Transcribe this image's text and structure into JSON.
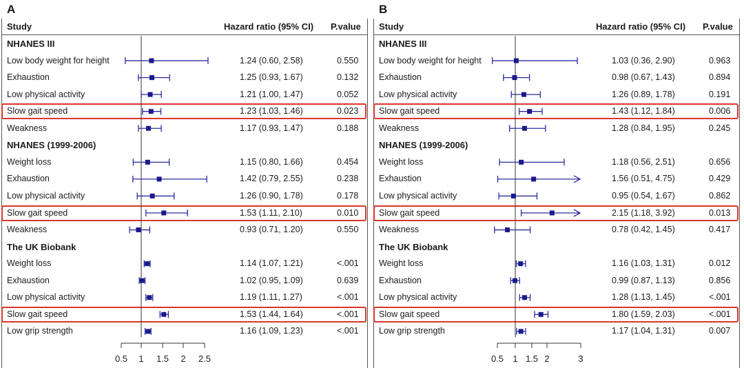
{
  "panels": [
    {
      "id": "A",
      "headers": {
        "study": "Study",
        "hr": "Hazard ratio (95% CI)",
        "p": "P.value"
      },
      "axis": {
        "ticks": [
          "0.5",
          "1",
          "1.5",
          "2",
          "2.5"
        ],
        "range": [
          0.5,
          2.5
        ],
        "reference": 1
      },
      "rows": [
        {
          "type": "group",
          "label": "NHANES III"
        },
        {
          "label": "Low body weight for height",
          "hr": "1.24 (0.60, 2.58)",
          "p": "0.550",
          "est": 1.24,
          "lo": 0.6,
          "hi": 2.58
        },
        {
          "label": "Exhaustion",
          "hr": "1.25 (0.93, 1.67)",
          "p": "0.132",
          "est": 1.25,
          "lo": 0.93,
          "hi": 1.67
        },
        {
          "label": "Low physical activity",
          "hr": "1.21 (1.00, 1.47)",
          "p": "0.052",
          "est": 1.21,
          "lo": 1.0,
          "hi": 1.47
        },
        {
          "label": "Slow gait speed",
          "hr": "1.23 (1.03, 1.46)",
          "p": "0.023",
          "est": 1.23,
          "lo": 1.03,
          "hi": 1.46,
          "highlight": true
        },
        {
          "label": "Weakness",
          "hr": "1.17 (0.93, 1.47)",
          "p": "0.188",
          "est": 1.17,
          "lo": 0.93,
          "hi": 1.47
        },
        {
          "type": "group",
          "label": "NHANES (1999-2006)"
        },
        {
          "label": "Weight loss",
          "hr": "1.15 (0.80, 1.66)",
          "p": "0.454",
          "est": 1.15,
          "lo": 0.8,
          "hi": 1.66
        },
        {
          "label": "Exhaustion",
          "hr": "1.42 (0.79, 2.55)",
          "p": "0.238",
          "est": 1.42,
          "lo": 0.79,
          "hi": 2.55
        },
        {
          "label": "Low physical activity",
          "hr": "1.26 (0.90, 1.78)",
          "p": "0.178",
          "est": 1.26,
          "lo": 0.9,
          "hi": 1.78
        },
        {
          "label": "Slow gait speed",
          "hr": "1.53 (1.11, 2.10)",
          "p": "0.010",
          "est": 1.53,
          "lo": 1.11,
          "hi": 2.1,
          "highlight": true
        },
        {
          "label": "Weakness",
          "hr": "0.93 (0.71, 1.20)",
          "p": "0.550",
          "est": 0.93,
          "lo": 0.71,
          "hi": 1.2
        },
        {
          "type": "group",
          "label": "The UK Biobank"
        },
        {
          "label": "Weight loss",
          "hr": "1.14 (1.07, 1.21)",
          "p": "<.001",
          "est": 1.14,
          "lo": 1.07,
          "hi": 1.21
        },
        {
          "label": "Exhaustion",
          "hr": "1.02 (0.95, 1.09)",
          "p": "0.639",
          "est": 1.02,
          "lo": 0.95,
          "hi": 1.09
        },
        {
          "label": "Low physical activity",
          "hr": "1.19 (1.11, 1.27)",
          "p": "<.001",
          "est": 1.19,
          "lo": 1.11,
          "hi": 1.27
        },
        {
          "label": "Slow gait speed",
          "hr": "1.53 (1.44, 1.64)",
          "p": "<.001",
          "est": 1.53,
          "lo": 1.44,
          "hi": 1.64,
          "highlight": true
        },
        {
          "label": "Low grip strength",
          "hr": "1.16 (1.09, 1.23)",
          "p": "<.001",
          "est": 1.16,
          "lo": 1.09,
          "hi": 1.23
        }
      ]
    },
    {
      "id": "B",
      "headers": {
        "study": "Study",
        "hr": "Hazard ratio (95% CI)",
        "p": "P.value"
      },
      "axis": {
        "ticks": [
          "0.5",
          "1",
          "1.5",
          "2",
          "3"
        ],
        "range": [
          0.5,
          3
        ],
        "reference": 1
      },
      "rows": [
        {
          "type": "group",
          "label": "NHANES III"
        },
        {
          "label": "Low body weight for height",
          "hr": "1.03 (0.36, 2.90)",
          "p": "0.963",
          "est": 1.03,
          "lo": 0.36,
          "hi": 2.9
        },
        {
          "label": "Exhaustion",
          "hr": "0.98 (0.67, 1.43)",
          "p": "0.894",
          "est": 0.98,
          "lo": 0.67,
          "hi": 1.43
        },
        {
          "label": "Low physical activity",
          "hr": "1.26 (0.89, 1.78)",
          "p": "0.191",
          "est": 1.26,
          "lo": 0.89,
          "hi": 1.78
        },
        {
          "label": "Slow gait speed",
          "hr": "1.43 (1.12, 1.84)",
          "p": "0.006",
          "est": 1.43,
          "lo": 1.12,
          "hi": 1.84,
          "highlight": true
        },
        {
          "label": "Weakness",
          "hr": "1.28 (0.84, 1.95)",
          "p": "0.245",
          "est": 1.28,
          "lo": 0.84,
          "hi": 1.95
        },
        {
          "type": "group",
          "label": "NHANES (1999-2006)"
        },
        {
          "label": "Weight loss",
          "hr": "1.18 (0.56, 2.51)",
          "p": "0.656",
          "est": 1.18,
          "lo": 0.56,
          "hi": 2.51
        },
        {
          "label": "Exhaustion",
          "hr": "1.56 (0.51, 4.75)",
          "p": "0.429",
          "est": 1.56,
          "lo": 0.51,
          "hi": 4.75,
          "arrow": true
        },
        {
          "label": "Low physical activity",
          "hr": "0.95 (0.54, 1.67)",
          "p": "0.862",
          "est": 0.95,
          "lo": 0.54,
          "hi": 1.67
        },
        {
          "label": "Slow gait speed",
          "hr": "2.15 (1.18, 3.92)",
          "p": "0.013",
          "est": 2.15,
          "lo": 1.18,
          "hi": 3.92,
          "highlight": true,
          "arrow": true
        },
        {
          "label": "Weakness",
          "hr": "0.78 (0.42, 1.45)",
          "p": "0.417",
          "est": 0.78,
          "lo": 0.42,
          "hi": 1.45
        },
        {
          "type": "group",
          "label": "The UK Biobank"
        },
        {
          "label": "Weight loss",
          "hr": "1.16 (1.03, 1.31)",
          "p": "0.012",
          "est": 1.16,
          "lo": 1.03,
          "hi": 1.31
        },
        {
          "label": "Exhaustion",
          "hr": "0.99 (0.87, 1.13)",
          "p": "0.856",
          "est": 0.99,
          "lo": 0.87,
          "hi": 1.13
        },
        {
          "label": "Low physical activity",
          "hr": "1.28 (1.13, 1.45)",
          "p": "<.001",
          "est": 1.28,
          "lo": 1.13,
          "hi": 1.45
        },
        {
          "label": "Slow gait speed",
          "hr": "1.80 (1.59, 2.03)",
          "p": "<.001",
          "est": 1.8,
          "lo": 1.59,
          "hi": 2.03,
          "highlight": true
        },
        {
          "label": "Low grip strength",
          "hr": "1.17 (1.04, 1.31)",
          "p": "0.007",
          "est": 1.17,
          "lo": 1.04,
          "hi": 1.31
        }
      ]
    }
  ],
  "colors": {
    "marker": "#1a1a8c",
    "ci": "#2a2aa0",
    "highlight": "#d9362b",
    "reference": "#333333"
  },
  "chart_data": [
    {
      "type": "forest",
      "title": "A",
      "xlabel": "",
      "xlim": [
        0.5,
        2.5
      ],
      "xticks": [
        0.5,
        1,
        1.5,
        2,
        2.5
      ],
      "reference_line": 1,
      "series": [
        {
          "name": "Hazard ratio (95% CI)",
          "points": [
            {
              "group": "NHANES III",
              "label": "Low body weight for height",
              "y": 1.24,
              "lo": 0.6,
              "hi": 2.58,
              "p": "0.550"
            },
            {
              "group": "NHANES III",
              "label": "Exhaustion",
              "y": 1.25,
              "lo": 0.93,
              "hi": 1.67,
              "p": "0.132"
            },
            {
              "group": "NHANES III",
              "label": "Low physical activity",
              "y": 1.21,
              "lo": 1.0,
              "hi": 1.47,
              "p": "0.052"
            },
            {
              "group": "NHANES III",
              "label": "Slow gait speed",
              "y": 1.23,
              "lo": 1.03,
              "hi": 1.46,
              "p": "0.023"
            },
            {
              "group": "NHANES III",
              "label": "Weakness",
              "y": 1.17,
              "lo": 0.93,
              "hi": 1.47,
              "p": "0.188"
            },
            {
              "group": "NHANES (1999-2006)",
              "label": "Weight loss",
              "y": 1.15,
              "lo": 0.8,
              "hi": 1.66,
              "p": "0.454"
            },
            {
              "group": "NHANES (1999-2006)",
              "label": "Exhaustion",
              "y": 1.42,
              "lo": 0.79,
              "hi": 2.55,
              "p": "0.238"
            },
            {
              "group": "NHANES (1999-2006)",
              "label": "Low physical activity",
              "y": 1.26,
              "lo": 0.9,
              "hi": 1.78,
              "p": "0.178"
            },
            {
              "group": "NHANES (1999-2006)",
              "label": "Slow gait speed",
              "y": 1.53,
              "lo": 1.11,
              "hi": 2.1,
              "p": "0.010"
            },
            {
              "group": "NHANES (1999-2006)",
              "label": "Weakness",
              "y": 0.93,
              "lo": 0.71,
              "hi": 1.2,
              "p": "0.550"
            },
            {
              "group": "The UK Biobank",
              "label": "Weight loss",
              "y": 1.14,
              "lo": 1.07,
              "hi": 1.21,
              "p": "<.001"
            },
            {
              "group": "The UK Biobank",
              "label": "Exhaustion",
              "y": 1.02,
              "lo": 0.95,
              "hi": 1.09,
              "p": "0.639"
            },
            {
              "group": "The UK Biobank",
              "label": "Low physical activity",
              "y": 1.19,
              "lo": 1.11,
              "hi": 1.27,
              "p": "<.001"
            },
            {
              "group": "The UK Biobank",
              "label": "Slow gait speed",
              "y": 1.53,
              "lo": 1.44,
              "hi": 1.64,
              "p": "<.001"
            },
            {
              "group": "The UK Biobank",
              "label": "Low grip strength",
              "y": 1.16,
              "lo": 1.09,
              "hi": 1.23,
              "p": "<.001"
            }
          ]
        }
      ]
    },
    {
      "type": "forest",
      "title": "B",
      "xlabel": "",
      "xlim": [
        0.5,
        3
      ],
      "xticks": [
        0.5,
        1,
        1.5,
        2,
        3
      ],
      "reference_line": 1,
      "series": [
        {
          "name": "Hazard ratio (95% CI)",
          "points": [
            {
              "group": "NHANES III",
              "label": "Low body weight for height",
              "y": 1.03,
              "lo": 0.36,
              "hi": 2.9,
              "p": "0.963"
            },
            {
              "group": "NHANES III",
              "label": "Exhaustion",
              "y": 0.98,
              "lo": 0.67,
              "hi": 1.43,
              "p": "0.894"
            },
            {
              "group": "NHANES III",
              "label": "Low physical activity",
              "y": 1.26,
              "lo": 0.89,
              "hi": 1.78,
              "p": "0.191"
            },
            {
              "group": "NHANES III",
              "label": "Slow gait speed",
              "y": 1.43,
              "lo": 1.12,
              "hi": 1.84,
              "p": "0.006"
            },
            {
              "group": "NHANES III",
              "label": "Weakness",
              "y": 1.28,
              "lo": 0.84,
              "hi": 1.95,
              "p": "0.245"
            },
            {
              "group": "NHANES (1999-2006)",
              "label": "Weight loss",
              "y": 1.18,
              "lo": 0.56,
              "hi": 2.51,
              "p": "0.656"
            },
            {
              "group": "NHANES (1999-2006)",
              "label": "Exhaustion",
              "y": 1.56,
              "lo": 0.51,
              "hi": 4.75,
              "p": "0.429"
            },
            {
              "group": "NHANES (1999-2006)",
              "label": "Low physical activity",
              "y": 0.95,
              "lo": 0.54,
              "hi": 1.67,
              "p": "0.862"
            },
            {
              "group": "NHANES (1999-2006)",
              "label": "Slow gait speed",
              "y": 2.15,
              "lo": 1.18,
              "hi": 3.92,
              "p": "0.013"
            },
            {
              "group": "NHANES (1999-2006)",
              "label": "Weakness",
              "y": 0.78,
              "lo": 0.42,
              "hi": 1.45,
              "p": "0.417"
            },
            {
              "group": "The UK Biobank",
              "label": "Weight loss",
              "y": 1.16,
              "lo": 1.03,
              "hi": 1.31,
              "p": "0.012"
            },
            {
              "group": "The UK Biobank",
              "label": "Exhaustion",
              "y": 0.99,
              "lo": 0.87,
              "hi": 1.13,
              "p": "0.856"
            },
            {
              "group": "The UK Biobank",
              "label": "Low physical activity",
              "y": 1.28,
              "lo": 1.13,
              "hi": 1.45,
              "p": "<.001"
            },
            {
              "group": "The UK Biobank",
              "label": "Slow gait speed",
              "y": 1.8,
              "lo": 1.59,
              "hi": 2.03,
              "p": "<.001"
            },
            {
              "group": "The UK Biobank",
              "label": "Low grip strength",
              "y": 1.17,
              "lo": 1.04,
              "hi": 1.31,
              "p": "0.007"
            }
          ]
        }
      ]
    }
  ]
}
